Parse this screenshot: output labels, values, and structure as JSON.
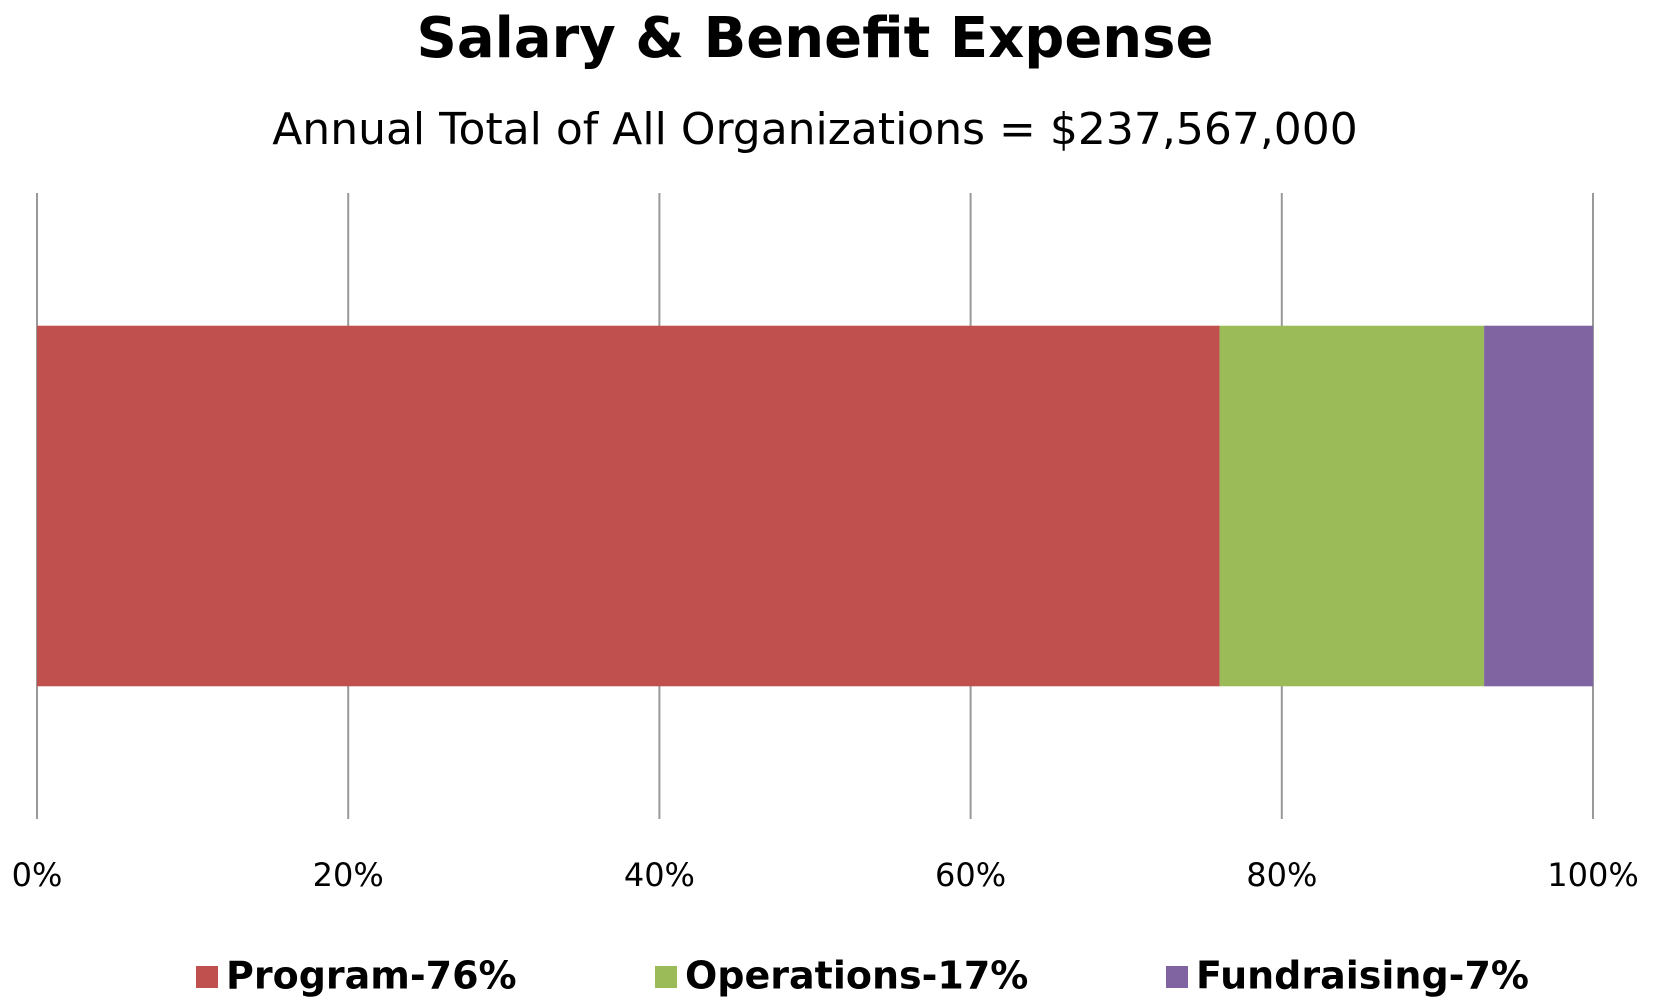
{
  "chart_data": {
    "type": "stacked_bar_horizontal",
    "title": "Salary & Benefit Expense",
    "subtitle": "Annual Total of All Organizations = $237,567,000",
    "categories": [
      null
    ],
    "series": [
      {
        "name": "Program-76%",
        "color": "#c0504d",
        "values": [
          76
        ]
      },
      {
        "name": "Operations-17%",
        "color": "#9bbb59",
        "values": [
          17
        ]
      },
      {
        "name": "Fundraising-7%",
        "color": "#8064a2",
        "values": [
          7
        ]
      }
    ],
    "xlim": [
      0,
      100
    ],
    "xticks": [
      {
        "value": 0,
        "label": "0%"
      },
      {
        "value": 20,
        "label": "20%"
      },
      {
        "value": 40,
        "label": "40%"
      },
      {
        "value": 60,
        "label": "60%"
      },
      {
        "value": 80,
        "label": "80%"
      },
      {
        "value": 100,
        "label": "100%"
      }
    ],
    "grid": true,
    "legend": "bottom"
  }
}
